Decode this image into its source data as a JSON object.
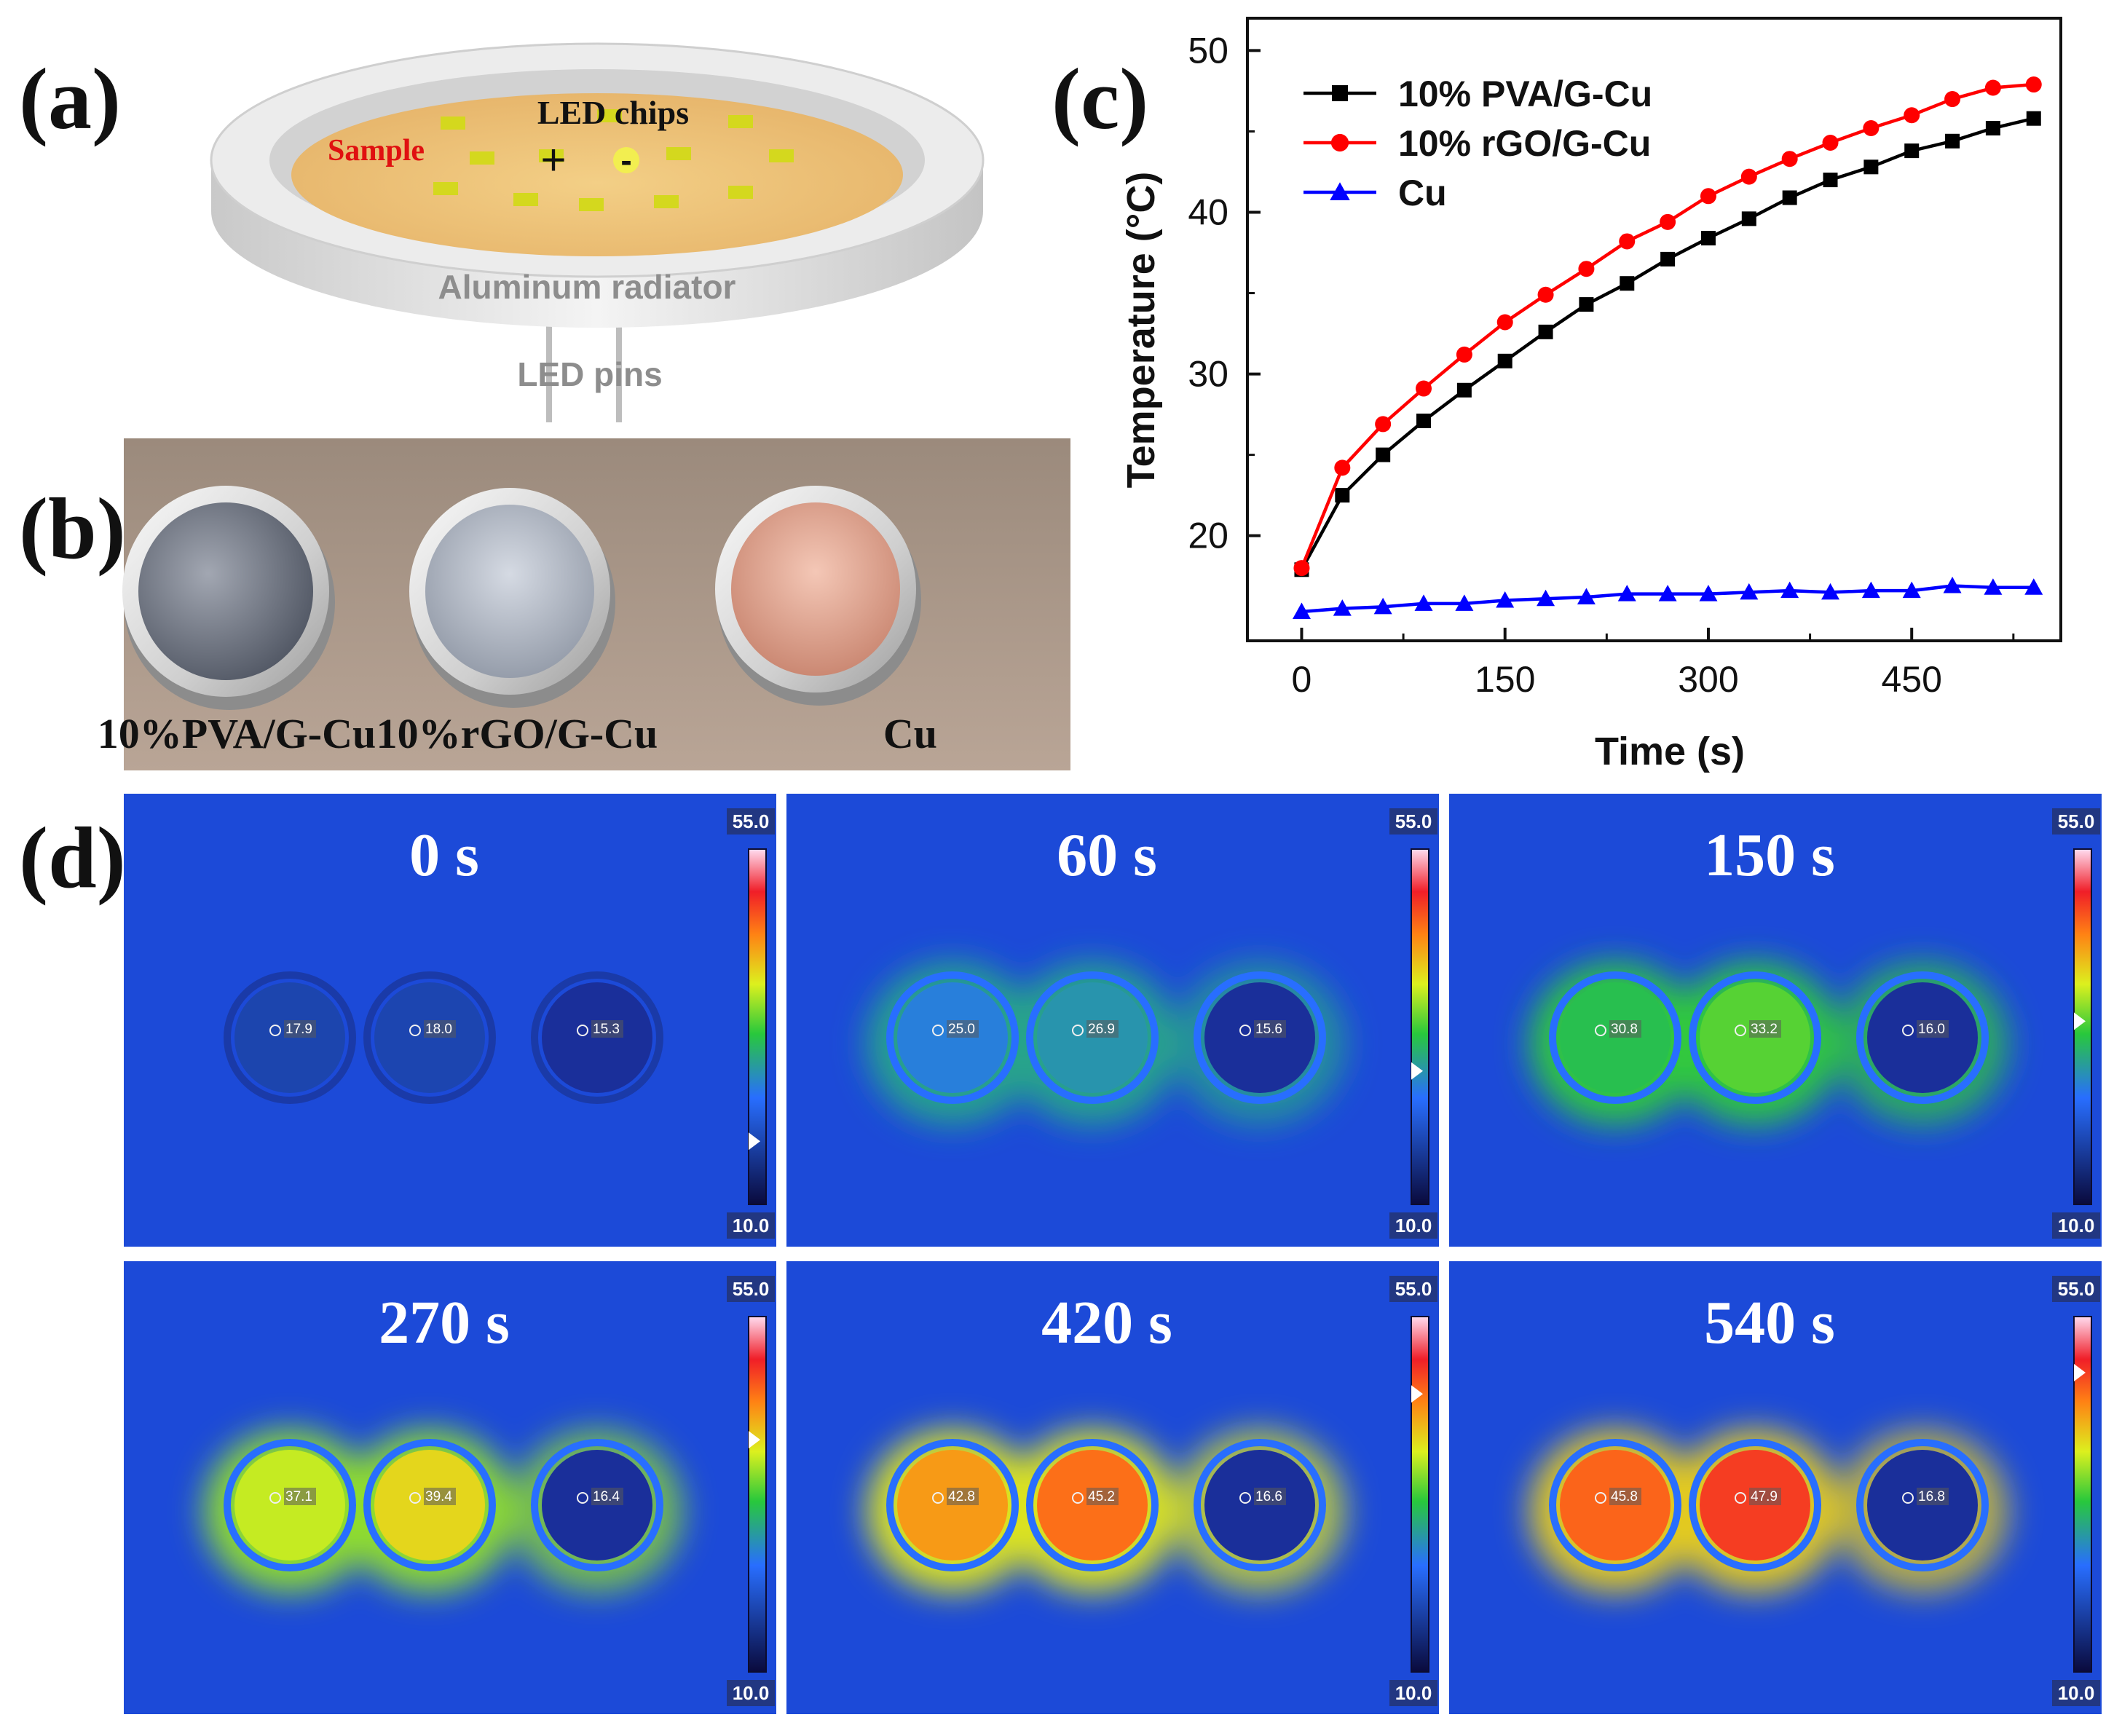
{
  "panels": {
    "a": {
      "label": "(a)",
      "led_chips": "LED chips",
      "sample": "Sample",
      "plus": "+",
      "minus": "-",
      "radiator": "Aluminum radiator",
      "pins": "LED pins"
    },
    "b": {
      "label": "(b)",
      "samples": [
        "10%PVA/G-Cu",
        "10%rGO/G-Cu",
        "Cu"
      ]
    },
    "c": {
      "label": "(c)"
    },
    "d": {
      "label": "(d)",
      "scale_max": "55.0",
      "scale_min": "10.0",
      "frames": [
        {
          "time": "0 s",
          "readings": [
            "17.9",
            "18.0",
            "15.3"
          ]
        },
        {
          "time": "60 s",
          "readings": [
            "25.0",
            "26.9",
            "15.6"
          ]
        },
        {
          "time": "150 s",
          "readings": [
            "30.8",
            "33.2",
            "16.0"
          ]
        },
        {
          "time": "270 s",
          "readings": [
            "37.1",
            "39.4",
            "16.4"
          ]
        },
        {
          "time": "420 s",
          "readings": [
            "42.8",
            "45.2",
            "16.6"
          ]
        },
        {
          "time": "540 s",
          "readings": [
            "45.8",
            "47.9",
            "16.8"
          ]
        }
      ]
    }
  },
  "chart_data": {
    "type": "line",
    "title": "",
    "xlabel": "Time (s)",
    "ylabel": "Temperature (°C)",
    "xlim": [
      -40,
      560
    ],
    "ylim": [
      13.5,
      52
    ],
    "xticks": [
      0,
      150,
      300,
      450
    ],
    "yticks": [
      20,
      30,
      40,
      50
    ],
    "legend_position": "top-left",
    "x": [
      0,
      30,
      60,
      90,
      120,
      150,
      180,
      210,
      240,
      270,
      300,
      330,
      360,
      390,
      420,
      450,
      480,
      510,
      540
    ],
    "series": [
      {
        "name": "10% PVA/G-Cu",
        "color": "#000000",
        "marker": "square",
        "values": [
          17.9,
          22.5,
          25.0,
          27.1,
          29.0,
          30.8,
          32.6,
          34.3,
          35.6,
          37.1,
          38.4,
          39.6,
          40.9,
          42.0,
          42.8,
          43.8,
          44.4,
          45.2,
          45.8
        ]
      },
      {
        "name": "10% rGO/G-Cu",
        "color": "#ff0000",
        "marker": "circle",
        "values": [
          18.0,
          24.2,
          26.9,
          29.1,
          31.2,
          33.2,
          34.9,
          36.5,
          38.2,
          39.4,
          41.0,
          42.2,
          43.3,
          44.3,
          45.2,
          46.0,
          47.0,
          47.7,
          47.9
        ]
      },
      {
        "name": "Cu",
        "color": "#0000ff",
        "marker": "triangle",
        "values": [
          15.3,
          15.5,
          15.6,
          15.8,
          15.8,
          16.0,
          16.1,
          16.2,
          16.4,
          16.4,
          16.4,
          16.5,
          16.6,
          16.5,
          16.6,
          16.6,
          16.9,
          16.8,
          16.8
        ]
      }
    ]
  }
}
